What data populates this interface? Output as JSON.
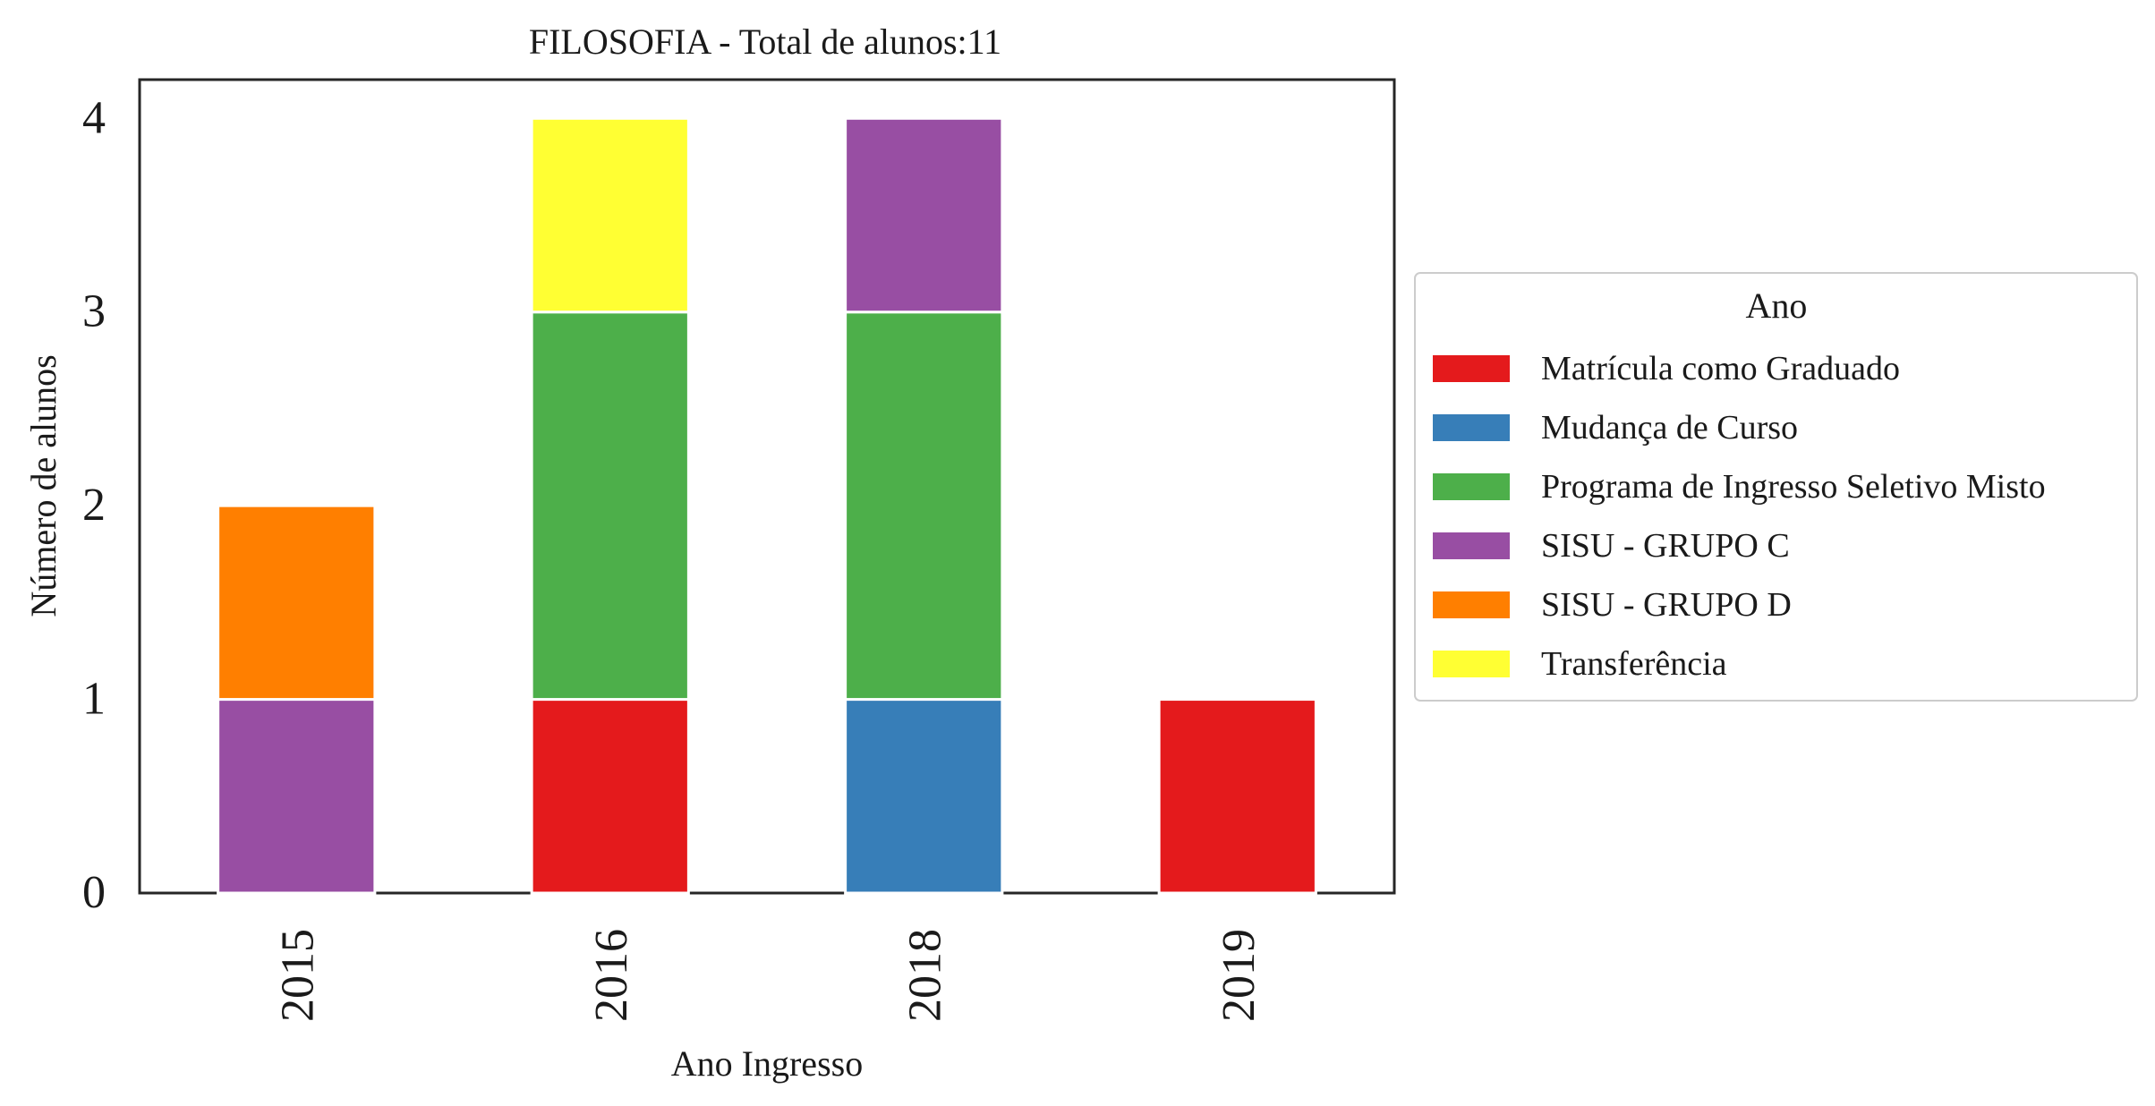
{
  "chart_data": {
    "type": "bar",
    "stacked": true,
    "title": "FILOSOFIA - Total de alunos:11",
    "xlabel": "Ano Ingresso",
    "ylabel": "Número de alunos",
    "categories": [
      "2015",
      "2016",
      "2018",
      "2019"
    ],
    "ylim": [
      0,
      4.2
    ],
    "yticks": [
      "0",
      "1",
      "2",
      "3",
      "4"
    ],
    "grid": false,
    "legend": {
      "title": "Ano",
      "placement": "center-right, outside plot"
    },
    "series": [
      {
        "name": "Matrícula como Graduado",
        "color": "#e41a1c",
        "values": [
          0,
          1,
          0,
          1
        ]
      },
      {
        "name": "Mudança de Curso",
        "color": "#377eb8",
        "values": [
          0,
          0,
          1,
          0
        ]
      },
      {
        "name": "Programa de Ingresso Seletivo Misto",
        "color": "#4daf4a",
        "values": [
          0,
          2,
          2,
          0
        ]
      },
      {
        "name": "SISU - GRUPO C",
        "color": "#984ea3",
        "values": [
          1,
          0,
          1,
          0
        ]
      },
      {
        "name": "SISU - GRUPO D",
        "color": "#ff7f00",
        "values": [
          1,
          0,
          0,
          0
        ]
      },
      {
        "name": "Transferência",
        "color": "#ffff33",
        "values": [
          0,
          1,
          0,
          0
        ]
      }
    ]
  }
}
